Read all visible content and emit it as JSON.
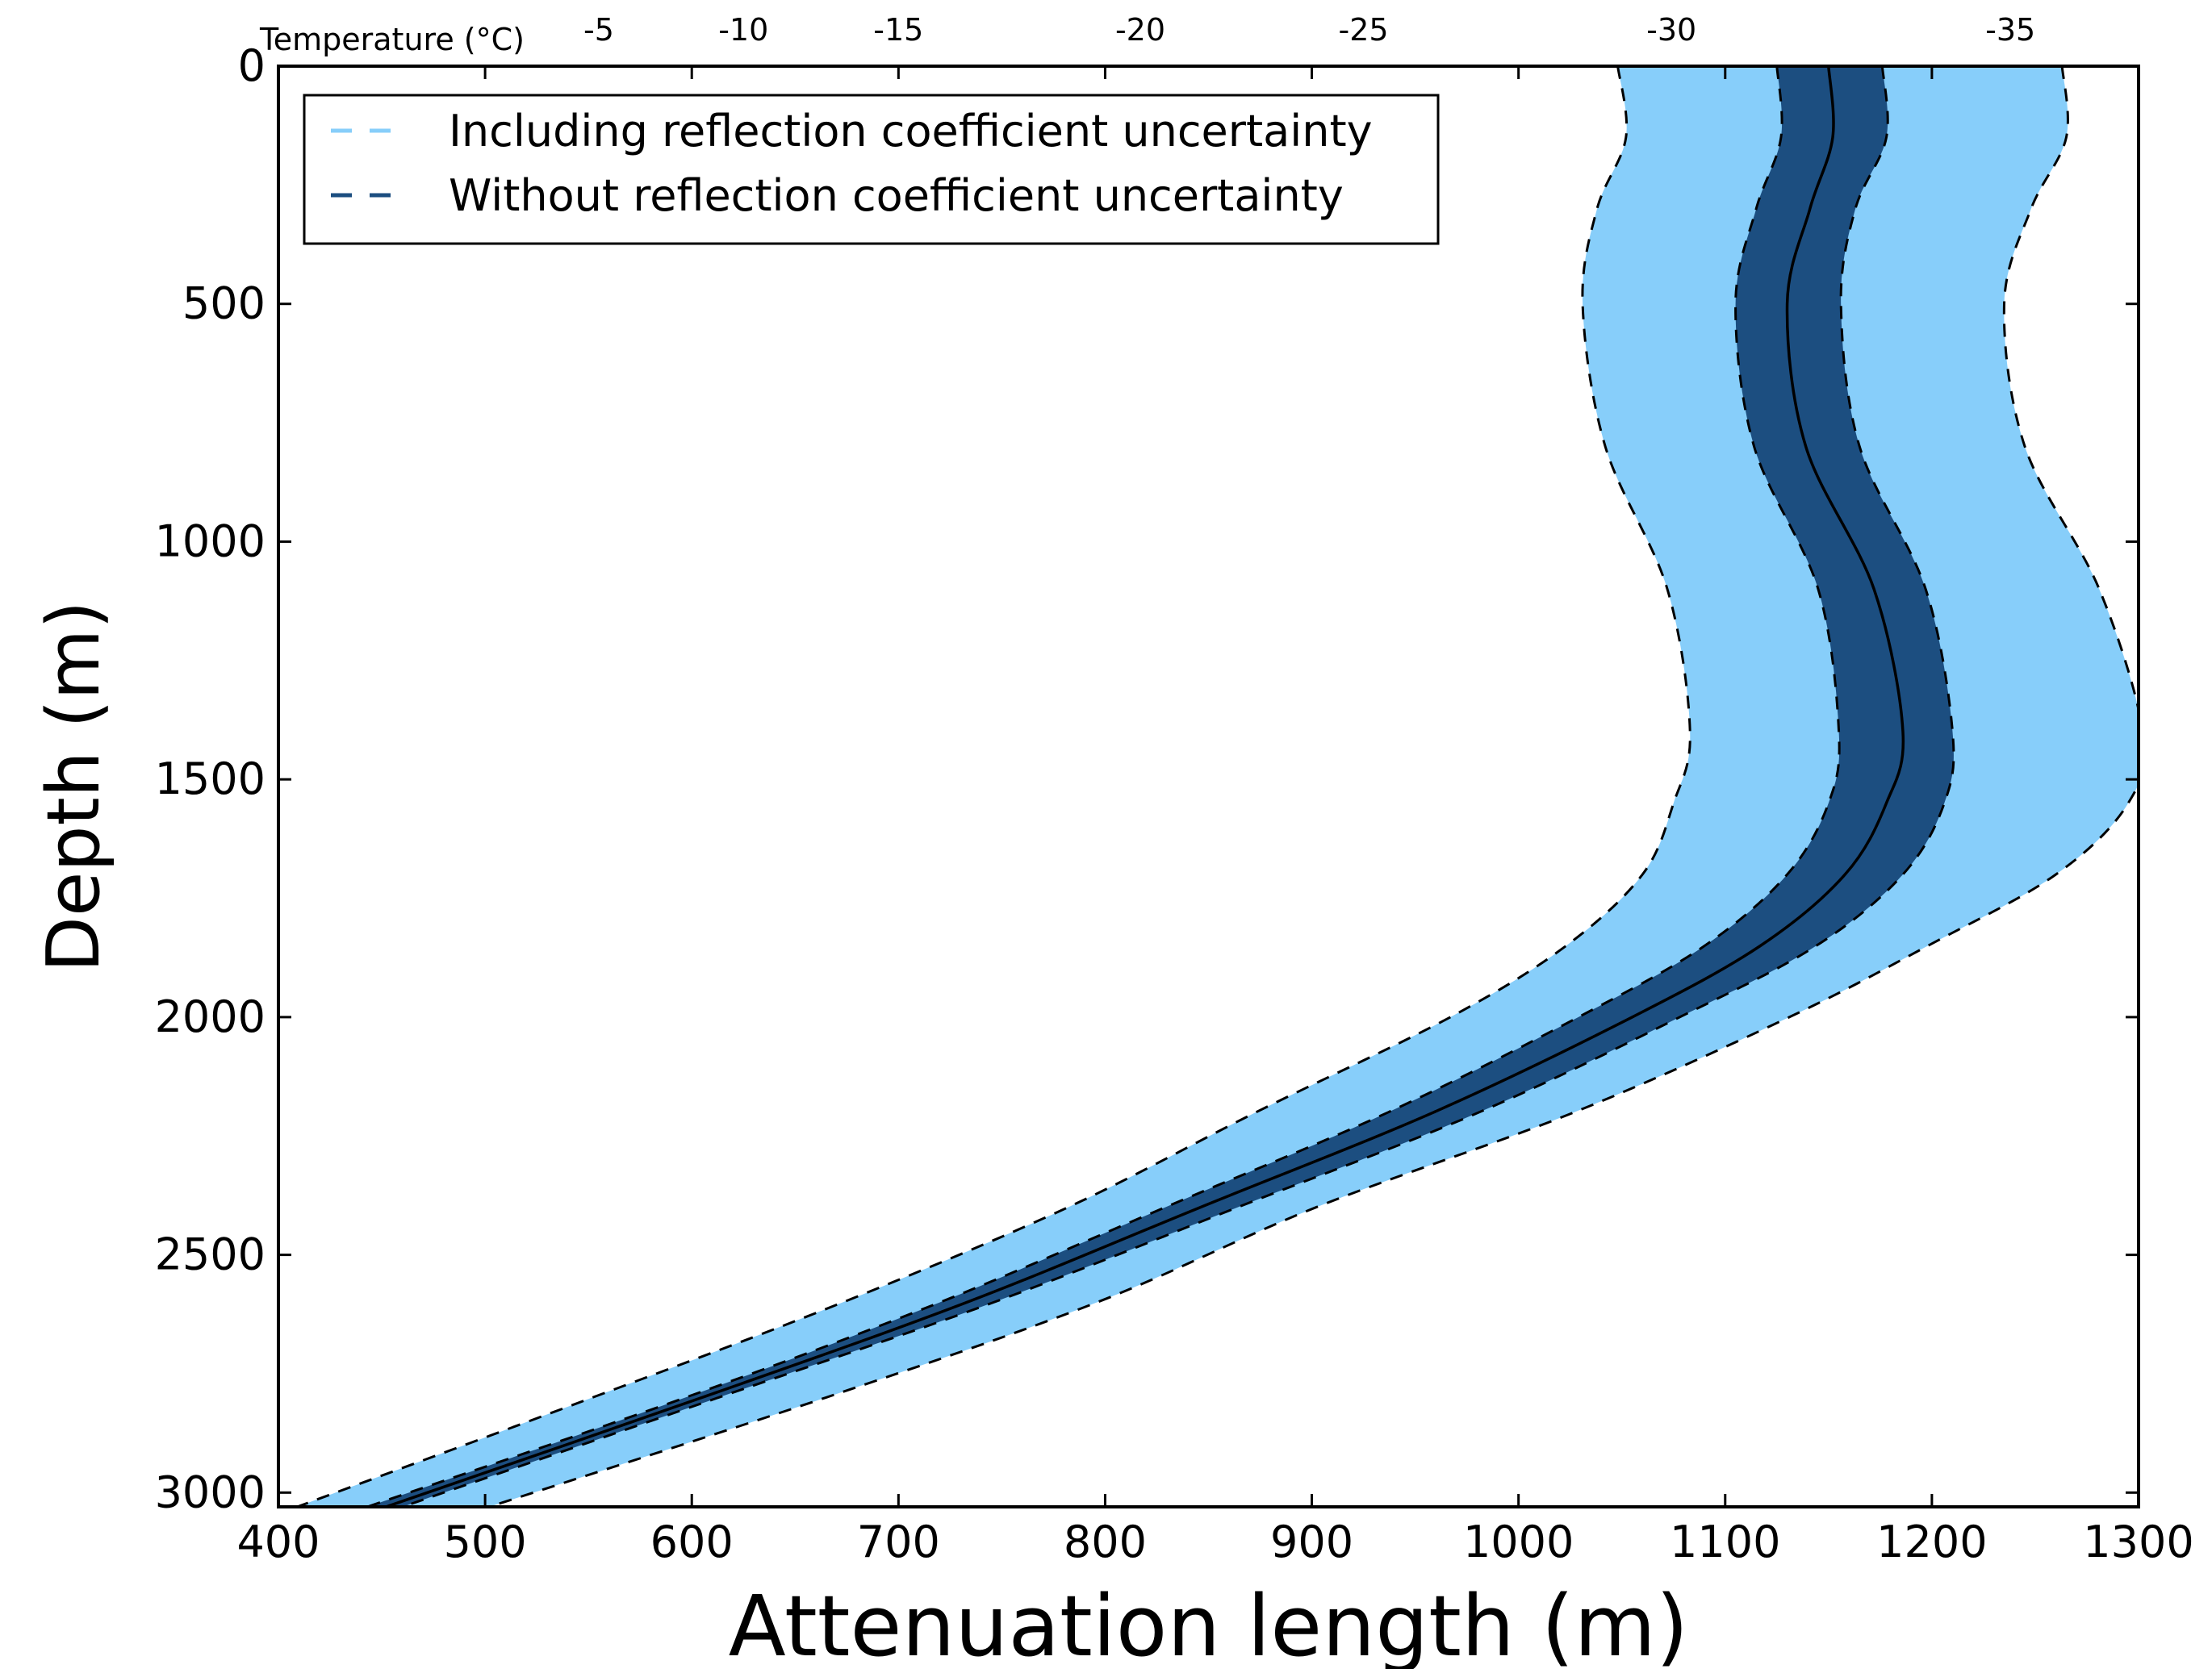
{
  "chart_data": {
    "type": "area",
    "xlabel": "Attenuation length (m)",
    "ylabel": "Depth (m)",
    "top_axis_label": "Temperature (°C)",
    "xlim": [
      400,
      1300
    ],
    "ylim": [
      3030,
      0
    ],
    "x_ticks": [
      "400",
      "500",
      "600",
      "700",
      "800",
      "900",
      "1000",
      "1100",
      "1200",
      "1300"
    ],
    "y_ticks": [
      "0",
      "500",
      "1000",
      "1500",
      "2000",
      "2500",
      "3000"
    ],
    "top_ticks": [
      {
        "label": "-5",
        "x": 555
      },
      {
        "label": "-10",
        "x": 625
      },
      {
        "label": "-15",
        "x": 700
      },
      {
        "label": "-20",
        "x": 817
      },
      {
        "label": "-25",
        "x": 925
      },
      {
        "label": "-30",
        "x": 1074
      },
      {
        "label": "-35",
        "x": 1238
      }
    ],
    "legend": {
      "position": "top-left",
      "entries": [
        {
          "label": "Including reflection coefficient uncertainty",
          "color": "#87cefa"
        },
        {
          "label": "Without reflection coefficient uncertainty",
          "color": "#1c4e80"
        }
      ]
    },
    "depth": [
      0,
      150,
      300,
      500,
      800,
      1100,
      1400,
      1550,
      1700,
      1850,
      2000,
      2200,
      2400,
      2600,
      2800,
      3030
    ],
    "series": [
      {
        "name": "Including reflection coefficient uncertainty",
        "lower": [
          1048,
          1052,
          1038,
          1031,
          1042,
          1072,
          1083,
          1075,
          1060,
          1023,
          967,
          873,
          782,
          673,
          552,
          409
        ],
        "upper": [
          1263,
          1265,
          1248,
          1235,
          1245,
          1281,
          1302,
          1295,
          1260,
          1198,
          1131,
          1027,
          902,
          796,
          665,
          502
        ]
      },
      {
        "name": "Without reflection coefficient uncertainty",
        "lower": [
          1125,
          1127,
          1115,
          1105,
          1114,
          1145,
          1155,
          1150,
          1130,
          1090,
          1029,
          937,
          829,
          720,
          597,
          443
        ],
        "upper": [
          1176,
          1178,
          1163,
          1156,
          1165,
          1197,
          1210,
          1206,
          1186,
          1144,
          1078,
          981,
          864,
          746,
          613,
          460
        ]
      },
      {
        "name": "Central estimate",
        "values": [
          1150,
          1152,
          1141,
          1130,
          1139,
          1172,
          1186,
          1178,
          1158,
          1117,
          1055,
          959,
          846,
          733,
          605,
          452
        ]
      }
    ],
    "colors": {
      "outer_band": "#87cefa",
      "inner_band": "#1c4e80",
      "center_line": "#000000",
      "frame": "#000000"
    },
    "grid": false
  }
}
